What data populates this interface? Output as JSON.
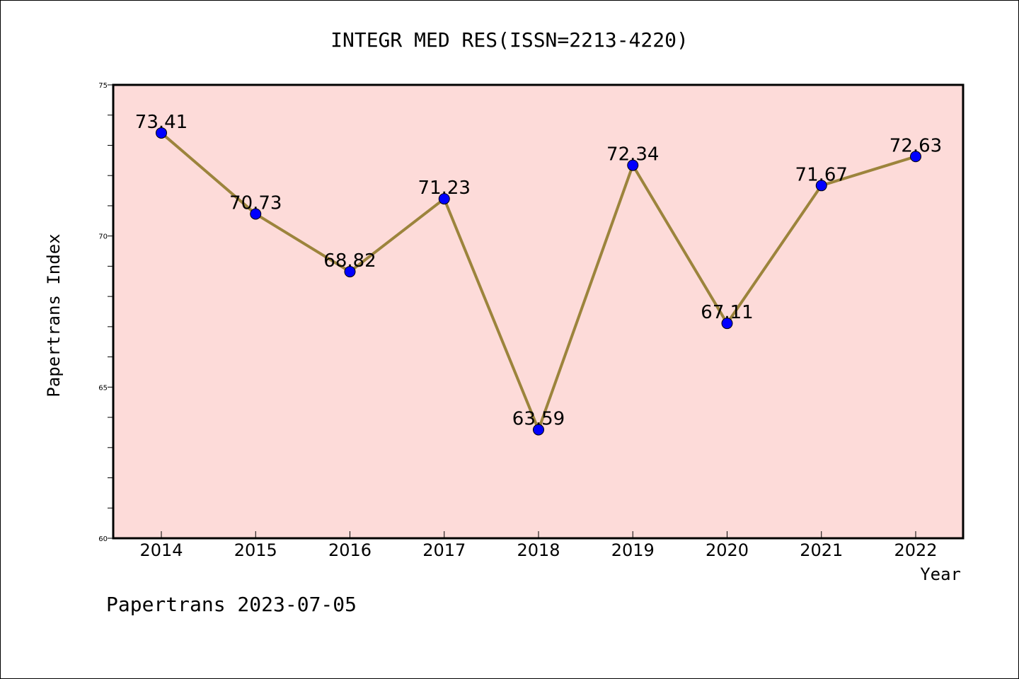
{
  "chart_data": {
    "type": "line",
    "title": "INTEGR MED RES(ISSN=2213-4220)",
    "xlabel": "Year",
    "ylabel": "Papertrans Index",
    "categories": [
      "2014",
      "2015",
      "2016",
      "2017",
      "2018",
      "2019",
      "2020",
      "2021",
      "2022"
    ],
    "values": [
      73.41,
      70.73,
      68.82,
      71.23,
      63.59,
      72.34,
      67.11,
      71.67,
      72.63
    ],
    "data_labels": [
      "73.41",
      "70.73",
      "68.82",
      "71.23",
      "63.59",
      "72.34",
      "67.11",
      "71.67",
      "72.63"
    ],
    "ylim": [
      60,
      75
    ],
    "y_ticks": [
      "60",
      "65",
      "70",
      "75"
    ],
    "grid": false,
    "legend": "none",
    "colors": {
      "plot_background": "#fddbd9",
      "line": "#9c843c",
      "marker": "#0000ff"
    }
  },
  "footer": "Papertrans 2023-07-05"
}
